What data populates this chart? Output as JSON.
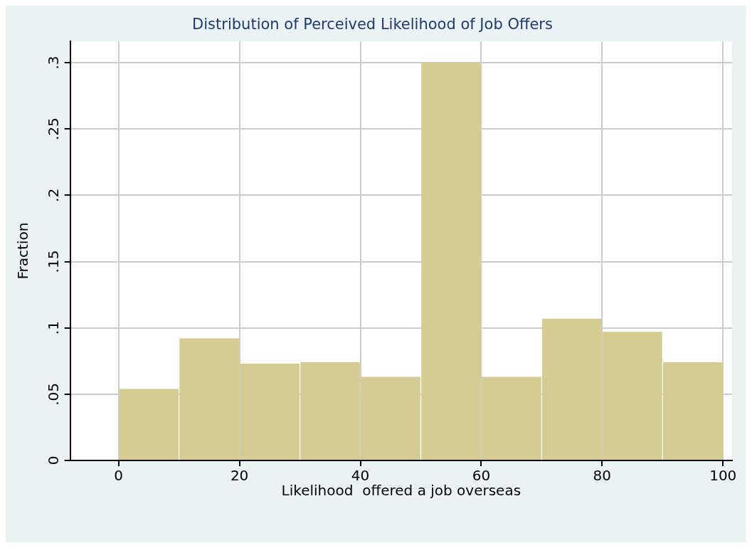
{
  "chart_data": {
    "type": "histogram",
    "title": "Distribution of Perceived Likelihood of Job Offers",
    "xlabel": "Likelihood  offered a job overseas",
    "ylabel": "Fraction",
    "bins": [
      0,
      10,
      20,
      30,
      40,
      50,
      60,
      70,
      80,
      90,
      100
    ],
    "values": [
      0.054,
      0.092,
      0.073,
      0.074,
      0.063,
      0.3,
      0.063,
      0.107,
      0.097,
      0.074
    ],
    "color": "#d4cc92",
    "xlim": [
      -8,
      101.5
    ],
    "xticks": [
      0,
      20,
      40,
      60,
      80,
      100
    ],
    "ylim": [
      0,
      0.316
    ],
    "yticks": [
      {
        "value": 0,
        "label": "0"
      },
      {
        "value": 0.05,
        "label": ".05"
      },
      {
        "value": 0.1,
        "label": ".1"
      },
      {
        "value": 0.15,
        "label": ".15"
      },
      {
        "value": 0.2,
        "label": ".2"
      },
      {
        "value": 0.25,
        "label": ".25"
      },
      {
        "value": 0.3,
        "label": ".3"
      }
    ],
    "grid": true
  }
}
